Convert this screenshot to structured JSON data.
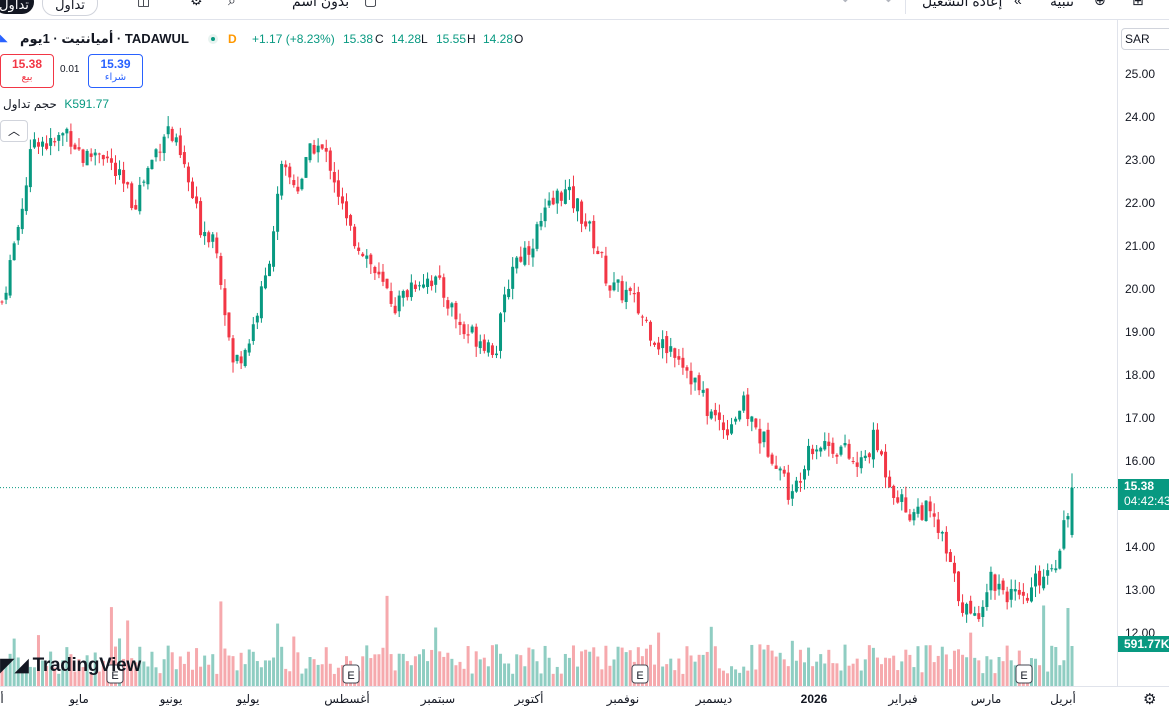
{
  "topbar": {
    "button_dark": "تداول",
    "button_trade": "تداول",
    "template_label": "بدون اسم",
    "replay_label": "إعادة التشغيل",
    "alert_label": "تنبيه",
    "icons": [
      "camera-icon",
      "gear-icon",
      "search-icon",
      "square-icon",
      "rewind-icon",
      "alarm-icon",
      "layout-icon"
    ]
  },
  "legend": {
    "symbol": "أميانتيت · 1يوم · TADAWUL",
    "flag": "D",
    "change": "+1.17 (+8.23%)",
    "close_label": "C",
    "close": "15.38",
    "low_label": "L",
    "low": "14.28",
    "high_label": "H",
    "high": "15.55",
    "open_label": "O",
    "open": "14.28"
  },
  "trade": {
    "sell_price": "15.38",
    "sell_label": "بيع",
    "spread": "0.01",
    "buy_price": "15.39",
    "buy_label": "شراء"
  },
  "volume_legend": {
    "label": "حجم تداول",
    "value": "K591.77"
  },
  "price_axis": {
    "currency": "SAR",
    "ticks": [
      "25.00",
      "24.00",
      "23.00",
      "22.00",
      "21.00",
      "20.00",
      "19.00",
      "18.00",
      "17.00",
      "16.00",
      "14.00",
      "13.00",
      "12.00"
    ],
    "last_price": "15.38",
    "countdown": "04:42:43",
    "volume_label": "591.77K"
  },
  "time_axis": {
    "ticks": [
      "أ",
      "مايو",
      "يونيو",
      "يوليو",
      "أغسطس",
      "سبتمبر",
      "أكتوبر",
      "نوفمبر",
      "ديسمبر",
      "2026",
      "فبراير",
      "مارس",
      "أبريل"
    ],
    "earnings_marker": "E"
  },
  "branding": {
    "logo_text": "TradingView"
  },
  "colors": {
    "up": "#089981",
    "down": "#f23645",
    "up_volume": "#8fcdc2",
    "down_volume": "#f6a9ad"
  },
  "chart_data": {
    "type": "candlestick",
    "symbol": "TADAWUL",
    "interval": "1D",
    "ylim": [
      11.6,
      25.4
    ],
    "x_categories": [
      "أ",
      "مايو",
      "يونيو",
      "يوليو",
      "أغسطس",
      "سبتمبر",
      "أكتوبر",
      "نوفمبر",
      "ديسمبر",
      "2026",
      "فبراير",
      "مارس",
      "أبريل"
    ],
    "close_path": [
      19.7,
      21.5,
      23.6,
      23.3,
      23.7,
      23.0,
      23.3,
      22.6,
      22.0,
      22.9,
      23.8,
      22.9,
      21.5,
      21.2,
      18.2,
      18.8,
      20.2,
      22.7,
      22.4,
      23.4,
      22.9,
      21.4,
      20.9,
      20.1,
      19.6,
      20.2,
      20.3,
      19.8,
      19.0,
      18.9,
      18.6,
      20.6,
      21.0,
      21.7,
      22.3,
      21.9,
      21.1,
      20.0,
      19.9,
      19.3,
      18.7,
      18.6,
      17.9,
      17.1,
      16.8,
      17.3,
      16.6,
      16.1,
      15.1,
      16.4,
      16.4,
      16.3,
      15.8,
      16.5,
      15.5,
      14.8,
      14.9,
      14.3,
      13.0,
      12.2,
      13.3,
      13.0,
      12.6,
      13.3,
      13.7,
      15.38
    ],
    "earnings_markers": 4,
    "last": 15.38,
    "volume_last": "591.77K"
  }
}
